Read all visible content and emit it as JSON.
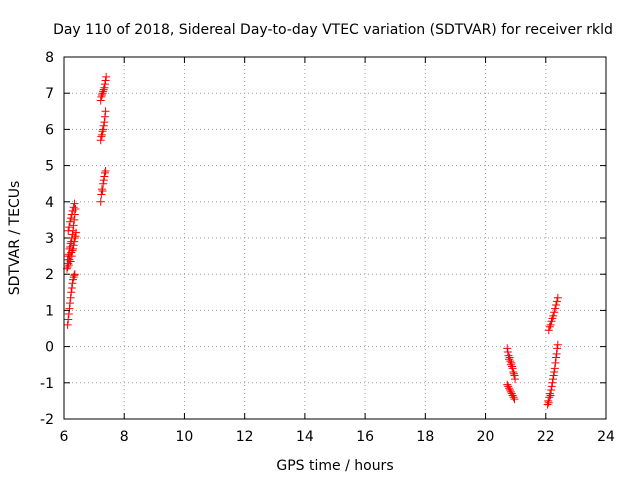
{
  "chart_data": {
    "type": "scatter",
    "title": "Day 110 of 2018, Sidereal Day-to-day VTEC variation (SDTVAR) for receiver rkld",
    "xlabel": "GPS time / hours",
    "ylabel": "SDTVAR / TECUs",
    "xlim": [
      6,
      24
    ],
    "ylim": [
      -2,
      8
    ],
    "xticks": [
      6,
      8,
      10,
      12,
      14,
      16,
      18,
      20,
      22,
      24
    ],
    "yticks": [
      -2,
      -1,
      0,
      1,
      2,
      3,
      4,
      5,
      6,
      7,
      8
    ],
    "grid": true,
    "marker": "plus",
    "series": [
      {
        "name": "SDTVAR",
        "color": "#ff0000",
        "x": [
          6.12,
          6.14,
          6.16,
          6.18,
          6.2,
          6.22,
          6.24,
          6.26,
          6.28,
          6.3,
          6.32,
          6.34,
          6.36,
          6.1,
          6.12,
          6.14,
          6.16,
          6.18,
          6.2,
          6.22,
          6.24,
          6.26,
          6.28,
          6.3,
          6.32,
          6.34,
          6.36,
          6.38,
          6.4,
          6.12,
          6.14,
          6.16,
          6.18,
          6.2,
          6.22,
          6.24,
          6.26,
          6.28,
          6.3,
          6.32,
          6.34,
          6.36,
          6.38,
          6.14,
          6.17,
          6.2,
          6.23,
          6.26,
          6.29,
          6.32,
          6.35,
          7.22,
          7.24,
          7.26,
          7.28,
          7.3,
          7.32,
          7.34,
          7.36,
          7.38,
          7.22,
          7.24,
          7.26,
          7.28,
          7.3,
          7.32,
          7.34,
          7.36,
          7.38,
          7.22,
          7.24,
          7.26,
          7.28,
          7.3,
          7.32,
          7.34,
          7.36,
          7.38,
          7.4,
          20.72,
          20.74,
          20.76,
          20.78,
          20.8,
          20.82,
          20.84,
          20.86,
          20.88,
          20.9,
          20.92,
          20.94,
          20.96,
          20.98,
          20.72,
          20.75,
          20.78,
          20.81,
          20.84,
          20.87,
          20.9,
          20.93,
          20.96,
          22.1,
          22.13,
          22.16,
          22.19,
          22.22,
          22.25,
          22.28,
          22.31,
          22.34,
          22.37,
          22.4,
          22.06,
          22.08,
          22.1,
          22.12,
          22.14,
          22.16,
          22.18,
          22.2,
          22.22,
          22.24,
          22.26,
          22.28,
          22.3,
          22.32,
          22.34,
          22.36,
          22.38,
          22.4
        ],
        "y": [
          0.6,
          0.75,
          0.9,
          1.05,
          1.2,
          1.35,
          1.5,
          1.62,
          1.75,
          1.85,
          1.92,
          1.97,
          2.0,
          2.15,
          2.2,
          2.3,
          2.25,
          2.4,
          2.5,
          2.35,
          2.6,
          2.5,
          2.65,
          2.7,
          2.8,
          2.9,
          3.0,
          3.05,
          3.15,
          2.4,
          2.5,
          2.55,
          2.7,
          2.75,
          2.85,
          2.9,
          3.0,
          3.1,
          3.2,
          3.35,
          3.5,
          3.65,
          3.8,
          3.2,
          3.3,
          3.45,
          3.55,
          3.65,
          3.75,
          3.85,
          3.95,
          4.0,
          4.2,
          4.35,
          4.3,
          4.5,
          4.6,
          4.7,
          4.8,
          4.85,
          5.7,
          5.8,
          5.85,
          5.95,
          6.0,
          6.1,
          6.2,
          6.35,
          6.5,
          6.8,
          6.9,
          6.95,
          7.0,
          7.05,
          7.1,
          7.15,
          7.25,
          7.35,
          7.45,
          -0.05,
          -0.15,
          -0.25,
          -0.35,
          -0.3,
          -0.4,
          -0.5,
          -0.45,
          -0.55,
          -0.6,
          -0.7,
          -0.75,
          -0.8,
          -0.9,
          -1.05,
          -1.1,
          -1.15,
          -1.2,
          -1.25,
          -1.3,
          -1.35,
          -1.4,
          -1.45,
          0.45,
          0.55,
          0.6,
          0.7,
          0.78,
          0.85,
          0.95,
          1.05,
          1.15,
          1.25,
          1.35,
          -1.6,
          -1.5,
          -1.55,
          -1.4,
          -1.3,
          -1.35,
          -1.2,
          -1.1,
          -1.0,
          -0.9,
          -0.8,
          -0.7,
          -0.6,
          -0.45,
          -0.3,
          -0.2,
          -0.05,
          0.05
        ]
      }
    ]
  }
}
